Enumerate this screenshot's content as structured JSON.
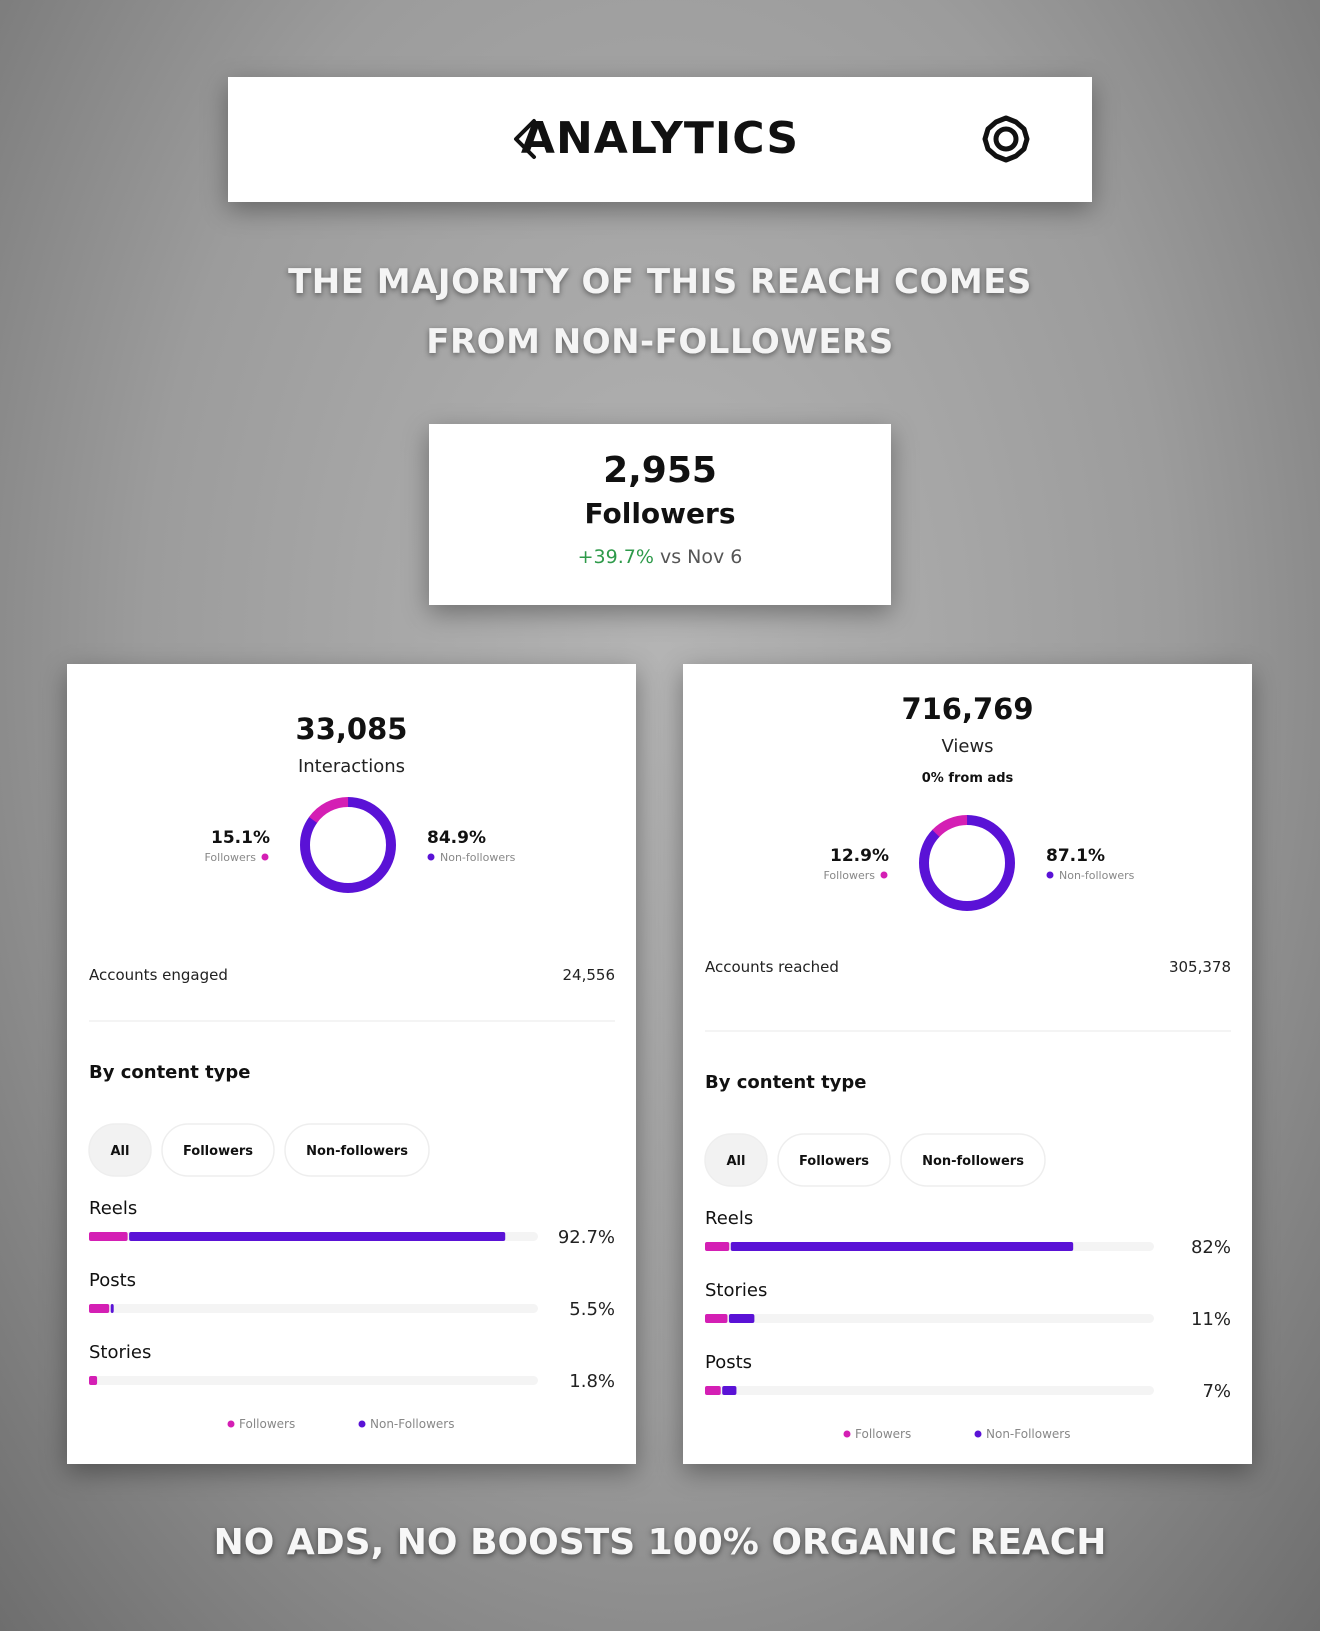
{
  "header": {
    "title": "ANALYTICS"
  },
  "headline": [
    "THE MAJORITY OF THIS REACH COMES",
    "FROM NON-FOLLOWERS"
  ],
  "followers_card": {
    "count": "2,955",
    "label": "Followers",
    "change": "+39.7%",
    "comparison": "vs Nov 6"
  },
  "panels": [
    {
      "total": "33,085",
      "metric": "Interactions",
      "donut": {
        "values": [
          15.1,
          84.9
        ],
        "value_labels": [
          "15.1%",
          "84.9%"
        ],
        "labels": [
          "Followers",
          "Non-followers"
        ],
        "colors": [
          "#d41fb4",
          "#5a12d6"
        ]
      },
      "accounts": {
        "label": "Accounts engaged",
        "value": "24,556"
      },
      "section_title": "By content type",
      "filters": [
        "All",
        "Followers",
        "Non-followers"
      ],
      "rows": [
        {
          "name": "Reels",
          "value": 92.7,
          "value_label": "92.7%",
          "segments": [
            8.6,
            84.1
          ]
        },
        {
          "name": "Posts",
          "value": 5.5,
          "value_label": "5.5%",
          "segments": [
            4.5,
            1.0
          ]
        },
        {
          "name": "Stories",
          "value": 1.8,
          "value_label": "1.8%",
          "segments": [
            1.8
          ]
        }
      ],
      "legend": [
        "Followers",
        "Non-Followers"
      ]
    },
    {
      "total": "716,769",
      "metric": "Views",
      "note": "0% from ads",
      "donut": {
        "values": [
          12.9,
          87.1
        ],
        "value_labels": [
          "12.9%",
          "87.1%"
        ],
        "labels": [
          "Followers",
          "Non-followers"
        ],
        "colors": [
          "#d41fb4",
          "#5a12d6"
        ]
      },
      "accounts": {
        "label": "Accounts reached",
        "value": "305,378"
      },
      "section_title": "By content type",
      "filters": [
        "All",
        "Followers",
        "Non-followers"
      ],
      "rows": [
        {
          "name": "Reels",
          "value": 82,
          "value_label": "82%",
          "segments": [
            5.4,
            76.6
          ]
        },
        {
          "name": "Stories",
          "value": 11,
          "value_label": "11%",
          "segments": [
            5.0,
            6.0
          ]
        },
        {
          "name": "Posts",
          "value": 7,
          "value_label": "7%",
          "segments": [
            3.5,
            3.5
          ]
        }
      ],
      "legend": [
        "Followers",
        "Non-Followers"
      ]
    }
  ],
  "footer": "NO ADS, NO BOOSTS 100% ORGANIC REACH"
}
